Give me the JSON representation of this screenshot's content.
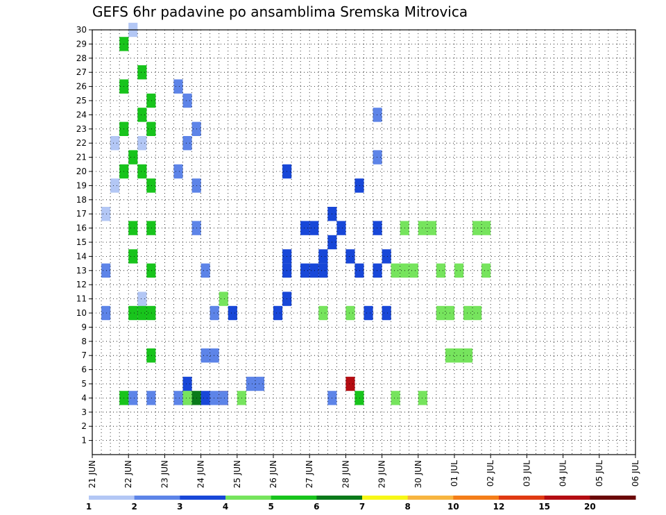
{
  "chart_data": {
    "type": "heatmap",
    "title": "GEFS 6hr padavine po ansamblima Sremska Mitrovica",
    "xlabel": "",
    "ylabel": "",
    "x_step": "6h",
    "x_range": [
      0,
      60
    ],
    "x_ticks": [
      {
        "label": "21 JUN",
        "x": 0
      },
      {
        "label": "22 JUN",
        "x": 4
      },
      {
        "label": "23 JUN",
        "x": 8
      },
      {
        "label": "24 JUN",
        "x": 12
      },
      {
        "label": "25 JUN",
        "x": 16
      },
      {
        "label": "26 JUN",
        "x": 20
      },
      {
        "label": "27 JUN",
        "x": 24
      },
      {
        "label": "28 JUN",
        "x": 28
      },
      {
        "label": "29 JUN",
        "x": 32
      },
      {
        "label": "30 JUN",
        "x": 36
      },
      {
        "label": "01 JUL",
        "x": 40
      },
      {
        "label": "02 JUL",
        "x": 44
      },
      {
        "label": "03 JUL",
        "x": 48
      },
      {
        "label": "04 JUL",
        "x": 52
      },
      {
        "label": "05 JUL",
        "x": 56
      },
      {
        "label": "06 JUL",
        "x": 60
      }
    ],
    "y_range": [
      0,
      30
    ],
    "y_ticks": [
      1,
      2,
      3,
      4,
      5,
      6,
      7,
      8,
      9,
      10,
      11,
      12,
      13,
      14,
      15,
      16,
      17,
      18,
      19,
      20,
      21,
      22,
      23,
      24,
      25,
      26,
      27,
      28,
      29,
      30
    ],
    "grid": true,
    "legend_position": "bottom",
    "legend_labels": [
      "1",
      "2",
      "3",
      "4",
      "5",
      "6",
      "7",
      "8",
      "10",
      "12",
      "15",
      "20"
    ],
    "legend_colors": [
      "#b3c7f5",
      "#5d84e8",
      "#1847d8",
      "#76e45d",
      "#18c41c",
      "#0a7a1a",
      "#f7f717",
      "#f7b540",
      "#f47e19",
      "#e03a12",
      "#b40c12",
      "#6b0707"
    ],
    "cells": [
      [
        41,
        1,
        1
      ],
      [
        61,
        1,
        1
      ],
      [
        91,
        1,
        1
      ],
      [
        101,
        1,
        2
      ],
      [
        101,
        2,
        2
      ],
      [
        111,
        1,
        5
      ],
      [
        121,
        1,
        2
      ],
      [
        124,
        1,
        1
      ],
      [
        15,
        2,
        0
      ],
      [
        26,
        1,
        0
      ],
      [
        27,
        1,
        0
      ],
      [
        47,
        9,
        0
      ],
      [
        53,
        2,
        0
      ],
      [
        57,
        1,
        0
      ],
      [
        101,
        1,
        3
      ],
      [
        141,
        1,
        9
      ],
      [
        161,
        1,
        3
      ],
      [
        171,
        2,
        1
      ],
      [
        181,
        2,
        1
      ],
      [
        261,
        1,
        1
      ],
      [
        281,
        2,
        10
      ],
      [
        291,
        1,
        4
      ],
      [
        94,
        8,
        1
      ],
      [
        98,
        2,
        1
      ],
      [
        106,
        4,
        1
      ],
      [
        107,
        4,
        1
      ],
      [
        13,
        1,
        1
      ],
      [
        14,
        1,
        1
      ],
      [
        115,
        1,
        1
      ],
      [
        116,
        1,
        1
      ],
      [
        116,
        5,
        1
      ],
      [
        122,
        1,
        1
      ],
      [
        131,
        1,
        1
      ],
      [
        132,
        1,
        1
      ],
      [
        133,
        1,
        1
      ],
      [
        141,
        1,
        1
      ],
      [
        143,
        2,
        3
      ],
      [
        153,
        1,
        2
      ],
      [
        203,
        1,
        2
      ],
      [
        213,
        2,
        2
      ],
      [
        213,
        4,
        2
      ],
      [
        214,
        2,
        2
      ],
      [
        216,
        2,
        2
      ],
      [
        234,
        1,
        2
      ],
      [
        235,
        1,
        2
      ],
      [
        244,
        1,
        2
      ],
      [
        245,
        1,
        2
      ],
      [
        254,
        1,
        2
      ],
      [
        253,
        1,
        3
      ],
      [
        254,
        2,
        2
      ],
      [
        264,
        3,
        2
      ],
      [
        265,
        2,
        2
      ],
      [
        275,
        1,
        2
      ],
      [
        283,
        1,
        3
      ],
      [
        284,
        2,
        2
      ],
      [
        294,
        1,
        2
      ],
      [
        296,
        1,
        2
      ],
      [
        303,
        1,
        2
      ],
      [
        314,
        1,
        2
      ],
      [
        315,
        1,
        2
      ],
      [
        323,
        1,
        2
      ],
      [
        324,
        2,
        2
      ],
      [
        314,
        9,
        1
      ],
      [
        315,
        9,
        1
      ],
      [
        331,
        1,
        3
      ],
      [
        334,
        1,
        3
      ],
      [
        344,
        1,
        3
      ],
      [
        345,
        1,
        3
      ],
      [
        354,
        1,
        3
      ],
      [
        361,
        1,
        3
      ],
      [
        365,
        1,
        3
      ],
      [
        375,
        1,
        3
      ],
      [
        383,
        1,
        3
      ],
      [
        384,
        1,
        3
      ],
      [
        393,
        1,
        3
      ],
      [
        392,
        1,
        3
      ],
      [
        404,
        1,
        3
      ],
      [
        402,
        1,
        3
      ],
      [
        413,
        1,
        3
      ],
      [
        412,
        1,
        3
      ],
      [
        425,
        1,
        3
      ],
      [
        423,
        1,
        3
      ],
      [
        434,
        1,
        3
      ],
      [
        435,
        1,
        3
      ],
      [
        31,
        1,
        4
      ],
      [
        36,
        2,
        4
      ],
      [
        37,
        2,
        4
      ],
      [
        38,
        2,
        4
      ],
      [
        39,
        2,
        4
      ],
      [
        43,
        1,
        4
      ],
      [
        44,
        2,
        4
      ],
      [
        45,
        1,
        4
      ],
      [
        46,
        3,
        4
      ],
      [
        53,
        1,
        4
      ],
      [
        56,
        2,
        4
      ],
      [
        57,
        3,
        4
      ],
      [
        58,
        3,
        4
      ],
      [
        62,
        1,
        4
      ],
      [
        63,
        1,
        4
      ],
      [
        64,
        1,
        4
      ],
      [
        65,
        1,
        4
      ],
      [
        66,
        1,
        4
      ],
      [
        67,
        2,
        4
      ],
      [
        68,
        1,
        4
      ]
    ]
  }
}
